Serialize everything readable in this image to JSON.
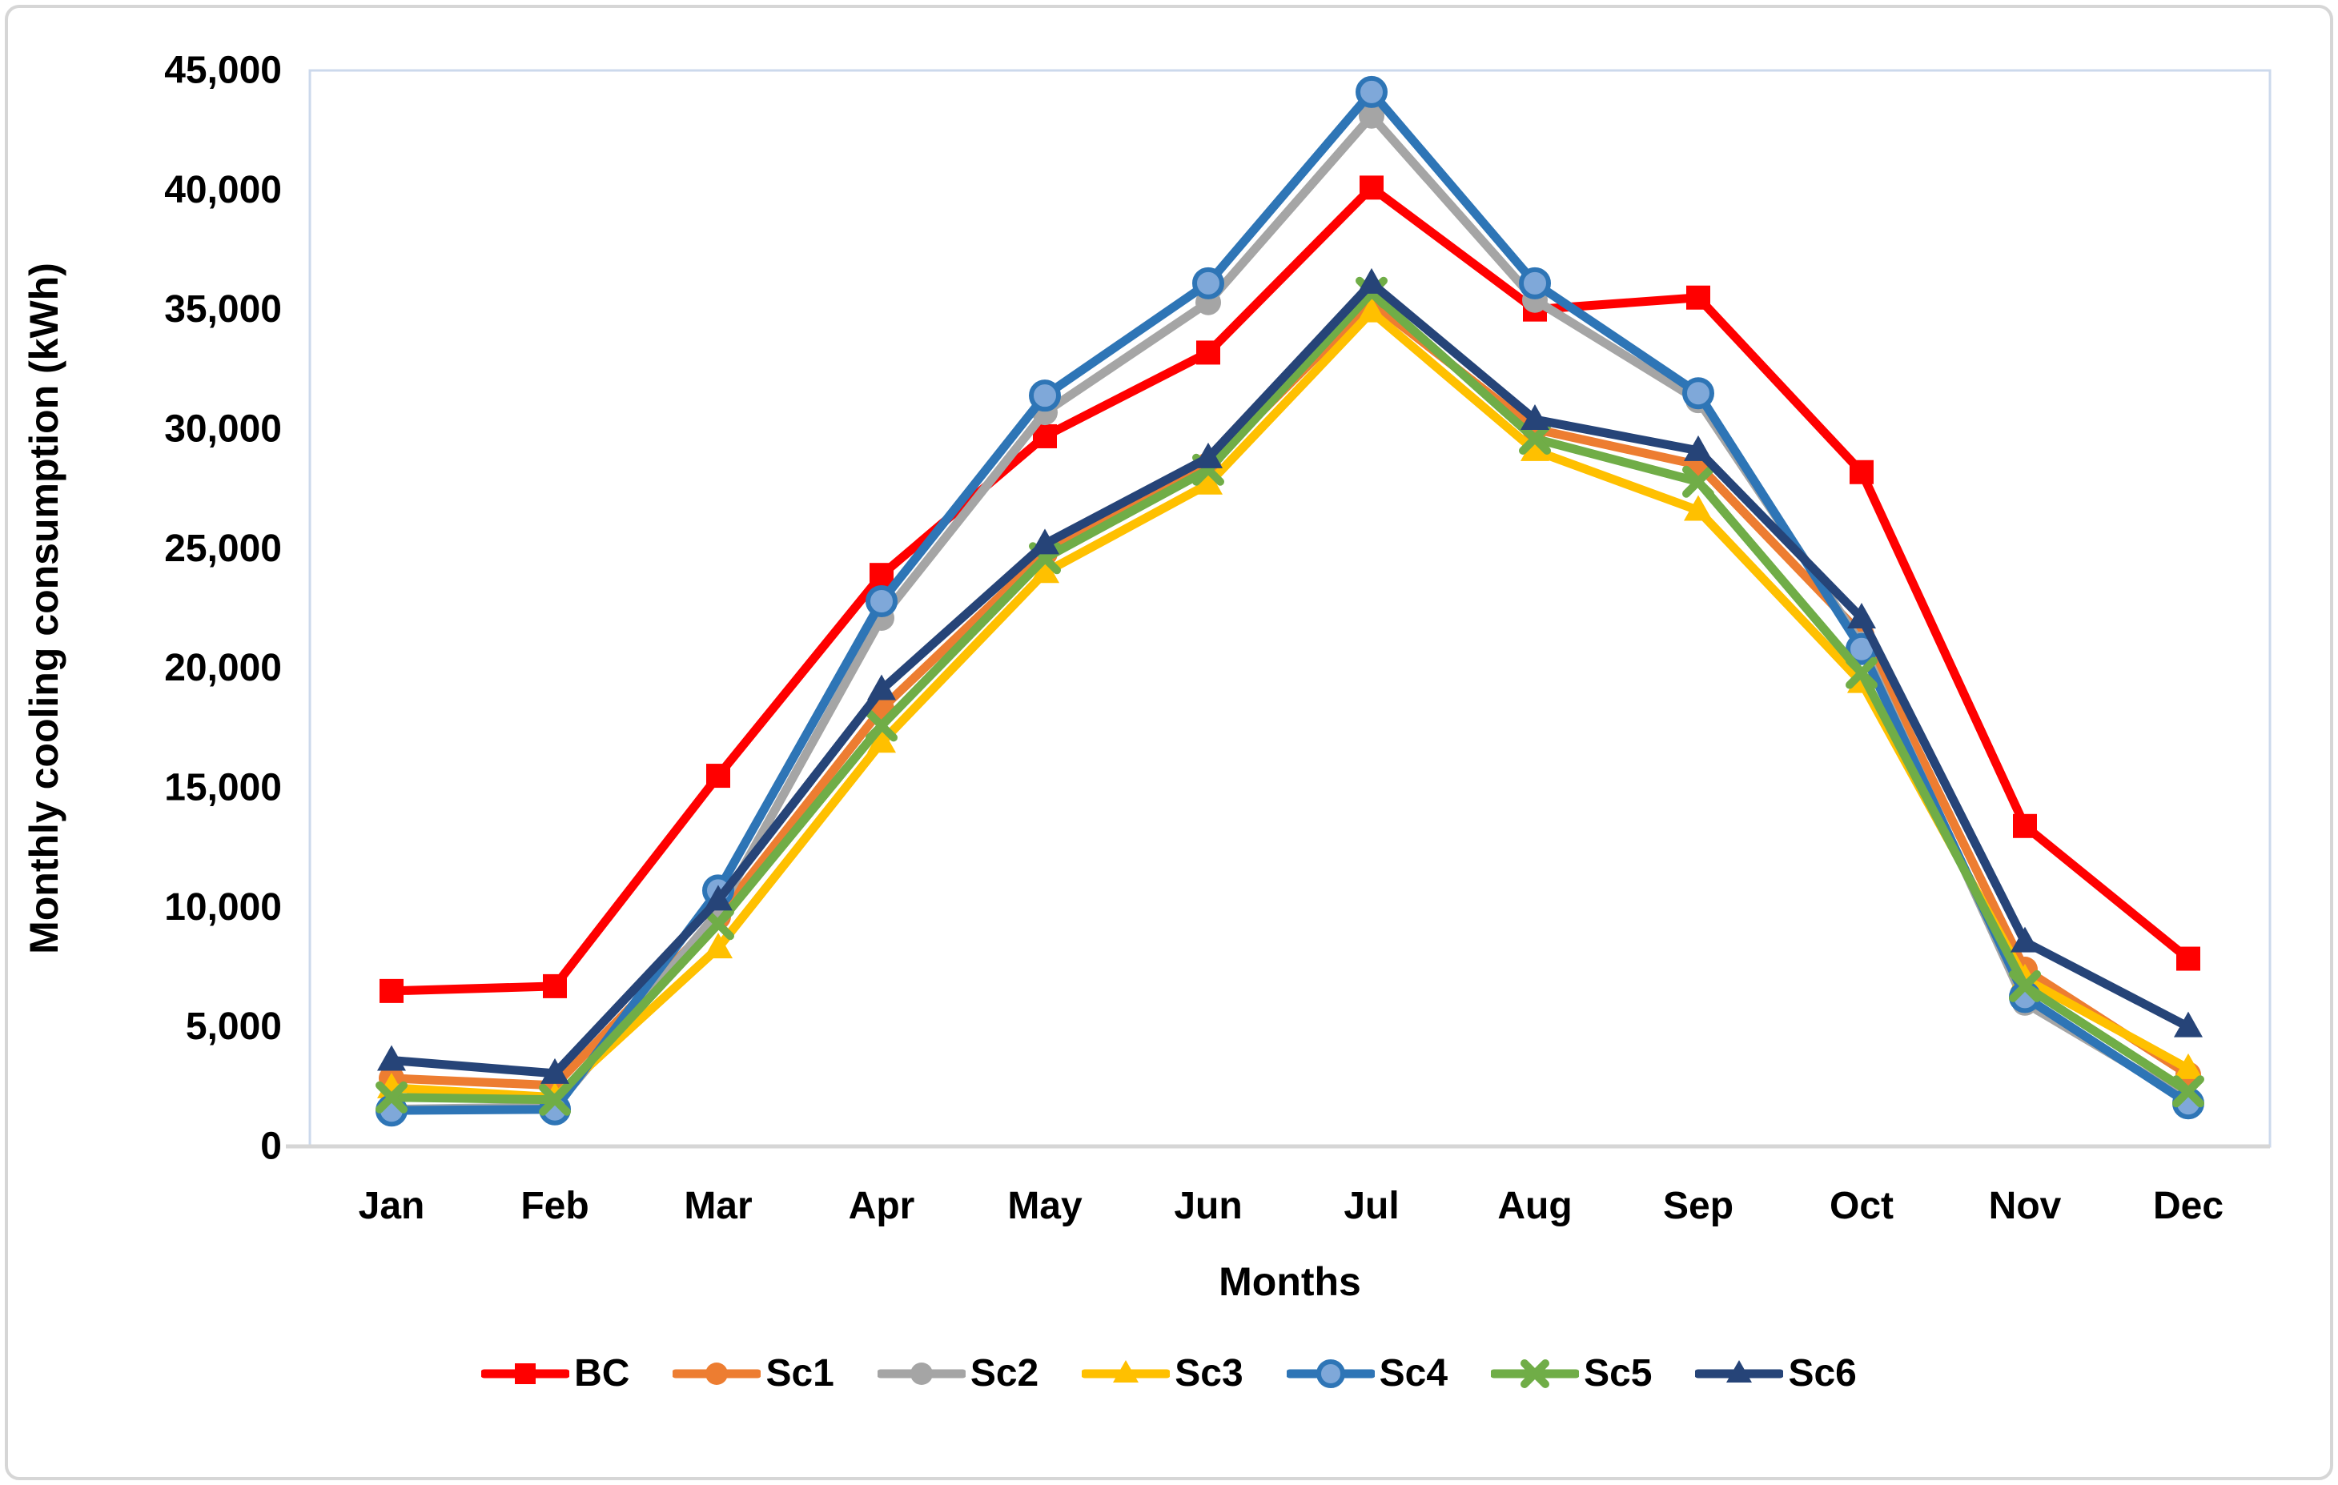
{
  "figure": {
    "background": "#ffffff",
    "outer_border_color": "#d6d6d6",
    "plot_border_color": "#ccd9ec",
    "axis_line_color": "#d6d6d6",
    "text_color": "#000000"
  },
  "chart_data": {
    "type": "line",
    "title": "",
    "xlabel": "Months",
    "ylabel": "Monthly cooling consumption (kWh)",
    "grid": false,
    "legend_position": "bottom",
    "categories": [
      "Jan",
      "Feb",
      "Mar",
      "Apr",
      "May",
      "Jun",
      "Jul",
      "Aug",
      "Sep",
      "Oct",
      "Nov",
      "Dec"
    ],
    "y_axis": {
      "min": 0,
      "max": 45000,
      "step": 5000,
      "tick_labels": [
        "0",
        "5,000",
        "10,000",
        "15,000",
        "20,000",
        "25,000",
        "30,000",
        "35,000",
        "40,000",
        "45,000"
      ]
    },
    "series": [
      {
        "name": "BC",
        "color": "#FF0000",
        "marker": "square",
        "values": [
          6500,
          6700,
          15500,
          23900,
          29700,
          33200,
          40100,
          35000,
          35500,
          28200,
          13400,
          7850
        ]
      },
      {
        "name": "Sc1",
        "color": "#ED7D31",
        "marker": "circle",
        "values": [
          2850,
          2550,
          9600,
          18300,
          24800,
          28500,
          35300,
          30000,
          28500,
          21400,
          7400,
          3000
        ]
      },
      {
        "name": "Sc2",
        "color": "#A5A5A5",
        "marker": "circle",
        "values": [
          1550,
          1650,
          9800,
          22100,
          30700,
          35300,
          43100,
          35400,
          31200,
          21000,
          6000,
          1950
        ]
      },
      {
        "name": "Sc3",
        "color": "#FFC000",
        "marker": "triangle",
        "values": [
          2450,
          2050,
          8300,
          16900,
          24000,
          27700,
          34900,
          29100,
          26600,
          19400,
          7000,
          3250
        ]
      },
      {
        "name": "Sc4",
        "color": "#2E75B6",
        "marker": "circle-light",
        "marker_fill": "#7FA8D9",
        "values": [
          1500,
          1550,
          10700,
          22800,
          31400,
          36100,
          44100,
          36100,
          31500,
          20800,
          6250,
          1800
        ]
      },
      {
        "name": "Sc5",
        "color": "#70AD47",
        "marker": "x",
        "values": [
          2050,
          1950,
          9300,
          17600,
          24600,
          28300,
          35700,
          29600,
          27800,
          19800,
          6700,
          2300
        ]
      },
      {
        "name": "Sc6",
        "color": "#264478",
        "marker": "triangle",
        "values": [
          3600,
          3050,
          10300,
          19100,
          25200,
          28800,
          36100,
          30400,
          29100,
          22100,
          8550,
          5000
        ]
      }
    ]
  }
}
